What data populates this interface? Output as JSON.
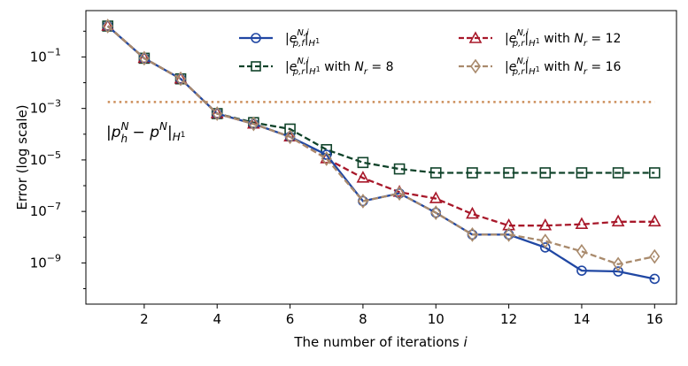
{
  "chart_data": {
    "type": "line",
    "xlabel": "The number of iterations i",
    "ylabel": "Error (log scale)",
    "yscale": "log",
    "xlim": [
      0.4,
      16.6
    ],
    "ylim_exp": [
      -10.6,
      0.8
    ],
    "x_ticks": [
      2,
      4,
      6,
      8,
      10,
      12,
      14,
      16
    ],
    "y_ticks_exp": [
      -9,
      -7,
      -5,
      -3,
      -1
    ],
    "y_tick_labels": [
      "10",
      "10",
      "10",
      "10",
      "10"
    ],
    "y_tick_exps": [
      "−9",
      "−7",
      "−5",
      "−3",
      "−1"
    ],
    "series": [
      {
        "name": "|e_{p,f}^{N,i}|_{H^1}",
        "color": "#2047a3",
        "dash": "solid",
        "marker": "circle",
        "x": [
          1,
          2,
          3,
          4,
          5,
          6,
          7,
          8,
          9,
          10,
          11,
          12,
          13,
          14,
          15,
          16
        ],
        "log10y": [
          0.2,
          -1.05,
          -1.85,
          -3.2,
          -3.6,
          -4.1,
          -4.8,
          -6.6,
          -6.3,
          -7.05,
          -7.9,
          -7.9,
          -8.4,
          -9.3,
          -9.33,
          -9.62
        ]
      },
      {
        "name": "|e_{p,r}^{N,i}|_{H^1} with N_r = 8",
        "color": "#10432a",
        "dash": "dashed",
        "marker": "square",
        "x": [
          1,
          2,
          3,
          4,
          5,
          6,
          7,
          8,
          9,
          10,
          11,
          12,
          13,
          14,
          15,
          16
        ],
        "log10y": [
          0.2,
          -1.05,
          -1.85,
          -3.2,
          -3.55,
          -3.8,
          -4.6,
          -5.1,
          -5.35,
          -5.5,
          -5.5,
          -5.5,
          -5.5,
          -5.5,
          -5.5,
          -5.5
        ]
      },
      {
        "name": "|e_{p,r}^{N,i}|_{H^1} with N_r = 12",
        "color": "#a8182a",
        "dash": "dashed",
        "marker": "triangle",
        "x": [
          1,
          2,
          3,
          4,
          5,
          6,
          7,
          8,
          9,
          10,
          11,
          12,
          13,
          14,
          15,
          16
        ],
        "log10y": [
          0.2,
          -1.05,
          -1.85,
          -3.2,
          -3.6,
          -4.1,
          -4.95,
          -5.7,
          -6.25,
          -6.5,
          -7.1,
          -7.55,
          -7.55,
          -7.5,
          -7.4,
          -7.4
        ]
      },
      {
        "name": "|e_{p,r}^{N,i}|_{H^1} with N_r = 16",
        "color": "#a98a6c",
        "dash": "dashed",
        "marker": "diamond",
        "x": [
          1,
          2,
          3,
          4,
          5,
          6,
          7,
          8,
          9,
          10,
          11,
          12,
          13,
          14,
          15,
          16
        ],
        "log10y": [
          0.2,
          -1.05,
          -1.85,
          -3.2,
          -3.6,
          -4.1,
          -4.95,
          -6.6,
          -6.3,
          -7.05,
          -7.9,
          -7.9,
          -8.15,
          -8.55,
          -9.05,
          -8.75
        ]
      }
    ],
    "reference_line": {
      "label": "|p_h^N − p^N|_{H^1}",
      "log10y": -2.75,
      "x_from": 1,
      "x_to": 16,
      "color": "#cc8e5a",
      "style": "dotted"
    },
    "legend_position": "top"
  }
}
